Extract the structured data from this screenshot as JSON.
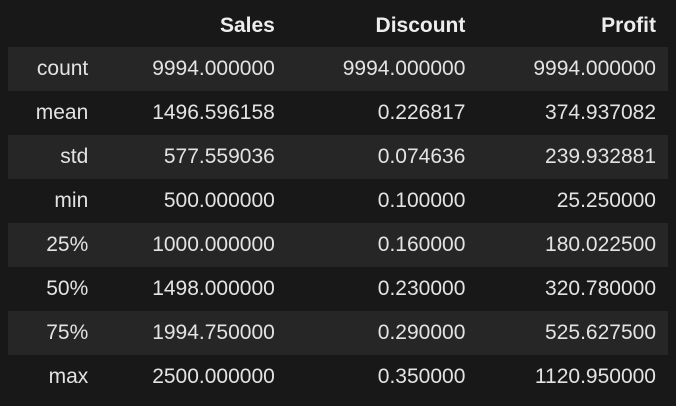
{
  "table": {
    "columns": [
      "",
      "Sales",
      "Discount",
      "Profit"
    ],
    "rows": [
      {
        "label": "count",
        "values": [
          "9994.000000",
          "9994.000000",
          "9994.000000"
        ]
      },
      {
        "label": "mean",
        "values": [
          "1496.596158",
          "0.226817",
          "374.937082"
        ]
      },
      {
        "label": "std",
        "values": [
          "577.559036",
          "0.074636",
          "239.932881"
        ]
      },
      {
        "label": "min",
        "values": [
          "500.000000",
          "0.100000",
          "25.250000"
        ]
      },
      {
        "label": "25%",
        "values": [
          "1000.000000",
          "0.160000",
          "180.022500"
        ]
      },
      {
        "label": "50%",
        "values": [
          "1498.000000",
          "0.230000",
          "320.780000"
        ]
      },
      {
        "label": "75%",
        "values": [
          "1994.750000",
          "0.290000",
          "525.627500"
        ]
      },
      {
        "label": "max",
        "values": [
          "2500.000000",
          "0.350000",
          "1120.950000"
        ]
      }
    ]
  }
}
